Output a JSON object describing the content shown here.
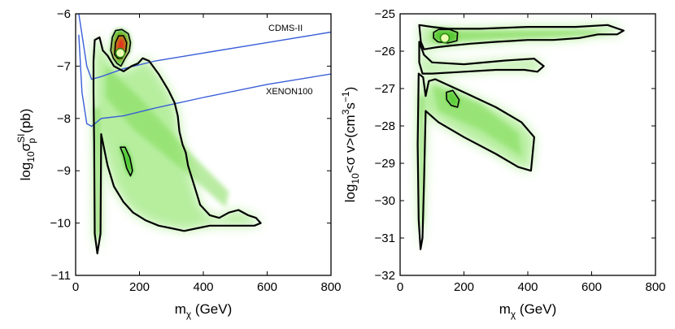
{
  "chart_data": [
    {
      "type": "heatmap",
      "title": "",
      "xlabel": "m_χ (GeV)",
      "ylabel": "log10 σ_p^SI (pb)",
      "xlabel_main": "m",
      "xlabel_sub": "χ",
      "xlabel_tail": " (GeV)",
      "ylabel_log": "log",
      "ylabel_log_sub": "10",
      "ylabel_sigma": "σ",
      "ylabel_sup": "SI",
      "ylabel_sub": "p",
      "ylabel_tail": "(pb)",
      "xlim": [
        0,
        800
      ],
      "ylim": [
        -11,
        -6
      ],
      "xticks": [
        "0",
        "200",
        "400",
        "600",
        "800"
      ],
      "yticks": [
        "−11",
        "−10",
        "−9",
        "−8",
        "−7",
        "−6"
      ],
      "best_fit": {
        "x": 140,
        "y": -6.75
      },
      "limit_curves": [
        {
          "name": "CDMS-II",
          "label_at": [
            640,
            -6.4
          ],
          "points": [
            [
              10,
              -6.0
            ],
            [
              25,
              -6.6
            ],
            [
              35,
              -7.0
            ],
            [
              50,
              -7.25
            ],
            [
              80,
              -7.2
            ],
            [
              150,
              -7.05
            ],
            [
              250,
              -6.9
            ],
            [
              400,
              -6.75
            ],
            [
              600,
              -6.55
            ],
            [
              800,
              -6.35
            ]
          ]
        },
        {
          "name": "XENON100",
          "label_at": [
            625,
            -7.6
          ],
          "points": [
            [
              10,
              -6.4
            ],
            [
              20,
              -7.5
            ],
            [
              35,
              -8.1
            ],
            [
              50,
              -8.15
            ],
            [
              80,
              -8.0
            ],
            [
              150,
              -7.95
            ],
            [
              250,
              -7.8
            ],
            [
              400,
              -7.6
            ],
            [
              600,
              -7.35
            ],
            [
              800,
              -7.15
            ]
          ]
        }
      ],
      "contours": [
        {
          "level": "outer",
          "points": [
            [
              60,
              -6.5
            ],
            [
              75,
              -6.45
            ],
            [
              85,
              -6.7
            ],
            [
              100,
              -6.8
            ],
            [
              120,
              -7.0
            ],
            [
              150,
              -7.1
            ],
            [
              175,
              -7.0
            ],
            [
              195,
              -6.95
            ],
            [
              210,
              -6.85
            ],
            [
              230,
              -6.9
            ],
            [
              260,
              -7.15
            ],
            [
              290,
              -7.45
            ],
            [
              310,
              -7.7
            ],
            [
              320,
              -7.95
            ],
            [
              325,
              -8.25
            ],
            [
              335,
              -8.5
            ],
            [
              345,
              -8.65
            ],
            [
              352,
              -8.9
            ],
            [
              370,
              -9.25
            ],
            [
              390,
              -9.65
            ],
            [
              420,
              -9.85
            ],
            [
              450,
              -9.9
            ],
            [
              480,
              -9.8
            ],
            [
              510,
              -9.75
            ],
            [
              540,
              -9.85
            ],
            [
              565,
              -9.9
            ],
            [
              580,
              -10.0
            ],
            [
              560,
              -10.05
            ],
            [
              480,
              -10.05
            ],
            [
              420,
              -10.05
            ],
            [
              380,
              -10.1
            ],
            [
              340,
              -10.15
            ],
            [
              300,
              -10.1
            ],
            [
              260,
              -10.05
            ],
            [
              220,
              -9.95
            ],
            [
              180,
              -9.8
            ],
            [
              150,
              -9.6
            ],
            [
              120,
              -9.3
            ],
            [
              100,
              -8.9
            ],
            [
              80,
              -8.3
            ],
            [
              78,
              -10.2
            ],
            [
              68,
              -10.58
            ],
            [
              60,
              -10.2
            ],
            [
              58,
              -8.5
            ],
            [
              56,
              -7.5
            ],
            [
              56,
              -6.9
            ]
          ]
        },
        {
          "level": "inner-mid",
          "points": [
            [
              140,
              -8.55
            ],
            [
              150,
              -8.7
            ],
            [
              160,
              -8.95
            ],
            [
              172,
              -9.1
            ],
            [
              178,
              -9.0
            ],
            [
              170,
              -8.75
            ],
            [
              155,
              -8.55
            ]
          ]
        },
        {
          "level": "top-95",
          "points": [
            [
              110,
              -6.7
            ],
            [
              115,
              -6.45
            ],
            [
              125,
              -6.32
            ],
            [
              145,
              -6.3
            ],
            [
              165,
              -6.38
            ],
            [
              172,
              -6.55
            ],
            [
              168,
              -6.72
            ],
            [
              155,
              -6.85
            ],
            [
              142,
              -7.0
            ],
            [
              130,
              -6.95
            ],
            [
              118,
              -6.85
            ]
          ]
        },
        {
          "level": "top-68",
          "points": [
            [
              122,
              -6.78
            ],
            [
              125,
              -6.55
            ],
            [
              135,
              -6.42
            ],
            [
              150,
              -6.42
            ],
            [
              160,
              -6.55
            ],
            [
              157,
              -6.72
            ],
            [
              145,
              -6.85
            ],
            [
              132,
              -6.85
            ]
          ]
        }
      ]
    },
    {
      "type": "heatmap",
      "title": "",
      "xlabel": "m_χ (GeV)",
      "ylabel": "log10<σ v>(cm^3 s^-1)",
      "xlabel_main": "m",
      "xlabel_sub": "χ",
      "xlabel_tail": " (GeV)",
      "ylabel_log": "log",
      "ylabel_log_sub": "10",
      "ylabel_mid": "<σ v>(cm",
      "ylabel_sup1": "3",
      "ylabel_mid2": "s",
      "ylabel_sup2": "−1",
      "ylabel_tail": ")",
      "xlim": [
        0,
        800
      ],
      "ylim": [
        -32,
        -25
      ],
      "xticks": [
        "0",
        "200",
        "400",
        "600",
        "800"
      ],
      "yticks": [
        "−32",
        "−31",
        "−30",
        "−29",
        "−28",
        "−27",
        "−26",
        "−25"
      ],
      "best_fit": {
        "x": 140,
        "y": -25.65
      },
      "contours": [
        {
          "level": "outer-top",
          "points": [
            [
              60,
              -25.3
            ],
            [
              100,
              -25.35
            ],
            [
              150,
              -25.4
            ],
            [
              250,
              -25.4
            ],
            [
              400,
              -25.35
            ],
            [
              550,
              -25.35
            ],
            [
              650,
              -25.3
            ],
            [
              700,
              -25.45
            ],
            [
              680,
              -25.55
            ],
            [
              620,
              -25.55
            ],
            [
              560,
              -25.65
            ],
            [
              480,
              -25.7
            ],
            [
              400,
              -25.7
            ],
            [
              300,
              -25.75
            ],
            [
              220,
              -25.8
            ],
            [
              160,
              -25.85
            ],
            [
              110,
              -25.9
            ],
            [
              75,
              -25.95
            ],
            [
              65,
              -25.75
            ]
          ]
        },
        {
          "level": "outer-top-lower",
          "points": [
            [
              60,
              -25.75
            ],
            [
              75,
              -26.1
            ],
            [
              100,
              -26.3
            ],
            [
              200,
              -26.35
            ],
            [
              330,
              -26.25
            ],
            [
              420,
              -26.2
            ],
            [
              450,
              -26.4
            ],
            [
              430,
              -26.55
            ],
            [
              390,
              -26.5
            ],
            [
              300,
              -26.5
            ],
            [
              200,
              -26.55
            ],
            [
              100,
              -26.6
            ],
            [
              70,
              -26.6
            ],
            [
              60,
              -26.3
            ]
          ]
        },
        {
          "level": "outer-left",
          "points": [
            [
              58,
              -26.6
            ],
            [
              72,
              -26.7
            ],
            [
              80,
              -27.2
            ],
            [
              90,
              -26.8
            ],
            [
              110,
              -26.75
            ],
            [
              200,
              -27.1
            ],
            [
              300,
              -27.5
            ],
            [
              380,
              -27.9
            ],
            [
              420,
              -28.3
            ],
            [
              410,
              -29.2
            ],
            [
              370,
              -29.1
            ],
            [
              300,
              -28.75
            ],
            [
              200,
              -28.3
            ],
            [
              120,
              -27.9
            ],
            [
              80,
              -27.6
            ],
            [
              75,
              -29.5
            ],
            [
              70,
              -31.0
            ],
            [
              64,
              -31.3
            ],
            [
              58,
              -30.5
            ],
            [
              55,
              -28.5
            ]
          ]
        },
        {
          "level": "inner-mid",
          "points": [
            [
              145,
              -27.1
            ],
            [
              165,
              -27.05
            ],
            [
              185,
              -27.3
            ],
            [
              180,
              -27.5
            ],
            [
              160,
              -27.45
            ],
            [
              146,
              -27.3
            ]
          ]
        },
        {
          "level": "top-95",
          "points": [
            [
              105,
              -25.5
            ],
            [
              120,
              -25.42
            ],
            [
              155,
              -25.42
            ],
            [
              180,
              -25.5
            ],
            [
              178,
              -25.72
            ],
            [
              150,
              -25.78
            ],
            [
              118,
              -25.75
            ],
            [
              105,
              -25.65
            ]
          ]
        }
      ]
    }
  ]
}
